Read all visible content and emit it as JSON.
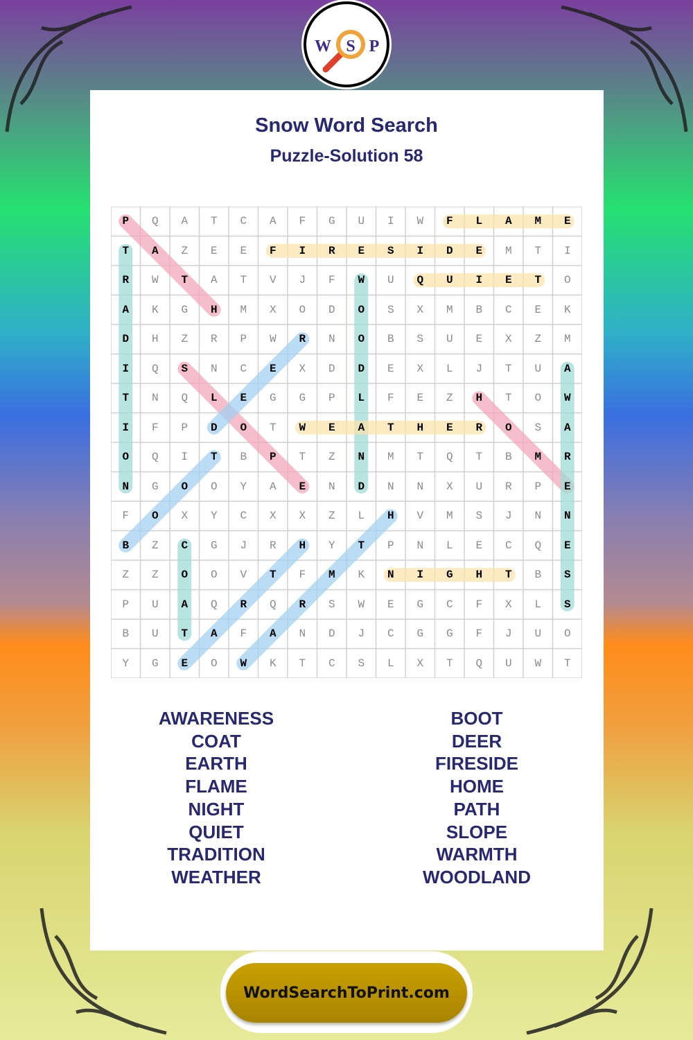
{
  "logo": {
    "letters": [
      "W",
      "S",
      "P"
    ],
    "icon": "magnifier-icon"
  },
  "title": "Snow Word Search",
  "subtitle": "Puzzle-Solution 58",
  "grid": [
    "PQATCAFGUIWFLAME",
    "TAZEEFIRESIDEMTI",
    "RWTATVJFWUQUIETO",
    "AKGHMXODOSXMBCEK",
    "DHZRPWRNOBSUEXZM",
    "IQSNCEXDDEXLJTUA",
    "TNQLEGGPLFEZHTOW",
    "IFPDOTWEATHEROSA",
    "OQITBPTZNMTQTBMR",
    "NGOOYAENDNNXURPE",
    "FOXYCXXZLHVMSJNN",
    "BZCGJRHYTPNLECQE",
    "ZZOOVTFMKNIGHTBS",
    "PUAQRQRSWEGCFXLS",
    "BUTAFANDJCGGFJUO",
    "YGEOWKTCSLXTQUWT"
  ],
  "solutions": [
    {
      "word": "PATH",
      "from": [
        0,
        0
      ],
      "to": [
        3,
        3
      ],
      "color": "#f4a7bb"
    },
    {
      "word": "TRADITION",
      "from": [
        1,
        0
      ],
      "to": [
        9,
        0
      ],
      "color": "#9fdcd6"
    },
    {
      "word": "FIRESIDE",
      "from": [
        1,
        5
      ],
      "to": [
        1,
        12
      ],
      "color": "#fbe3ad"
    },
    {
      "word": "FLAME",
      "from": [
        0,
        11
      ],
      "to": [
        0,
        15
      ],
      "color": "#fbe3ad"
    },
    {
      "word": "QUIET",
      "from": [
        2,
        10
      ],
      "to": [
        2,
        14
      ],
      "color": "#fbe3ad"
    },
    {
      "word": "WOODLAND",
      "from": [
        2,
        8
      ],
      "to": [
        9,
        8
      ],
      "color": "#9fdcd6"
    },
    {
      "word": "SLOPE",
      "from": [
        5,
        2
      ],
      "to": [
        9,
        6
      ],
      "color": "#f4a7bb"
    },
    {
      "word": "DEER",
      "from": [
        7,
        3
      ],
      "to": [
        4,
        6
      ],
      "color": "#a3d2f2"
    },
    {
      "word": "WEATHER",
      "from": [
        7,
        6
      ],
      "to": [
        7,
        12
      ],
      "color": "#fbe3ad"
    },
    {
      "word": "HOME",
      "from": [
        6,
        12
      ],
      "to": [
        9,
        15
      ],
      "color": "#f4a7bb"
    },
    {
      "word": "AWARENESS",
      "from": [
        5,
        15
      ],
      "to": [
        13,
        15
      ],
      "color": "#9fdcd6"
    },
    {
      "word": "BOOT",
      "from": [
        11,
        0
      ],
      "to": [
        8,
        3
      ],
      "color": "#a3d2f2"
    },
    {
      "word": "COAT",
      "from": [
        11,
        2
      ],
      "to": [
        14,
        2
      ],
      "color": "#9fdcd6"
    },
    {
      "word": "EARTH",
      "from": [
        15,
        2
      ],
      "to": [
        11,
        6
      ],
      "color": "#a3d2f2"
    },
    {
      "word": "WARMTH",
      "from": [
        15,
        4
      ],
      "to": [
        10,
        9
      ],
      "color": "#a3d2f2"
    },
    {
      "word": "NIGHT",
      "from": [
        12,
        9
      ],
      "to": [
        12,
        13
      ],
      "color": "#fbe3ad"
    }
  ],
  "words_left": [
    "AWARENESS",
    "COAT",
    "EARTH",
    "FLAME",
    "NIGHT",
    "QUIET",
    "TRADITION",
    "WEATHER"
  ],
  "words_right": [
    "BOOT",
    "DEER",
    "FIRESIDE",
    "HOME",
    "PATH",
    "SLOPE",
    "WARMTH",
    "WOODLAND"
  ],
  "footer": "WordSearchToPrint.com"
}
